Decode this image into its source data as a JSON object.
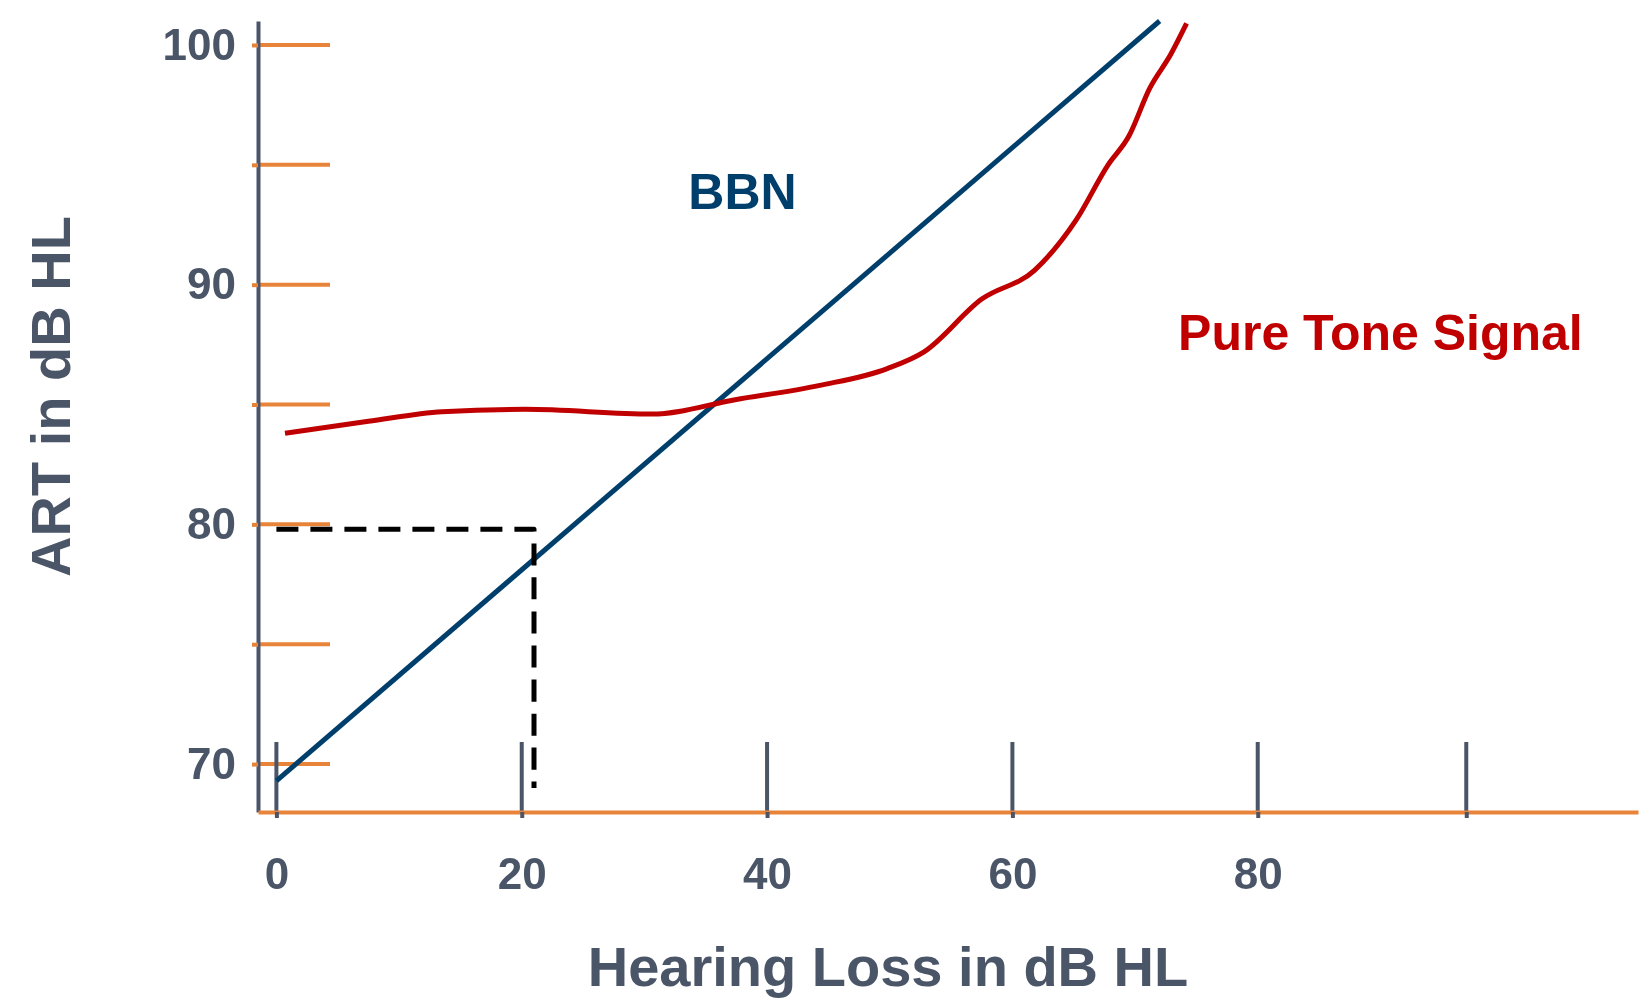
{
  "chart_data": {
    "type": "line",
    "xlabel": "Hearing Loss in dB HL",
    "ylabel": "ART in dB HL",
    "xlim": [
      -1.5,
      111
    ],
    "ylim": [
      68,
      101
    ],
    "xticks": [
      0,
      20,
      40,
      60,
      80,
      {
        "value": 97,
        "label": null
      }
    ],
    "yticks": [
      70,
      {
        "value": 75,
        "label": null
      },
      80,
      {
        "value": 85,
        "label": null
      },
      90,
      {
        "value": 95,
        "label": null
      },
      100
    ],
    "grid": false,
    "marker": "none",
    "series": [
      {
        "name": "BBN",
        "color": "#003f6b",
        "x": [
          0,
          72
        ],
        "values": [
          69.3,
          101
        ]
      },
      {
        "name": "Pure Tone Signal",
        "color": "#c00000",
        "x": [
          0.7,
          7.5,
          13.5,
          20.3,
          30.6,
          37.4,
          44.3,
          49.8,
          52.8,
          57.5,
          61.8,
          65.2,
          67.8,
          69.5,
          71.2,
          72.9,
          74.2
        ],
        "values": [
          83.8,
          84.3,
          84.7,
          84.8,
          84.6,
          85.2,
          85.8,
          86.5,
          87.2,
          89.4,
          90.6,
          92.7,
          95.0,
          96.2,
          98.2,
          99.6,
          100.9
        ]
      },
      {
        "color": "#000000",
        "line_style": "dashed",
        "x": [
          0,
          21,
          21
        ],
        "values": [
          79.8,
          79.8,
          69
        ]
      }
    ]
  }
}
